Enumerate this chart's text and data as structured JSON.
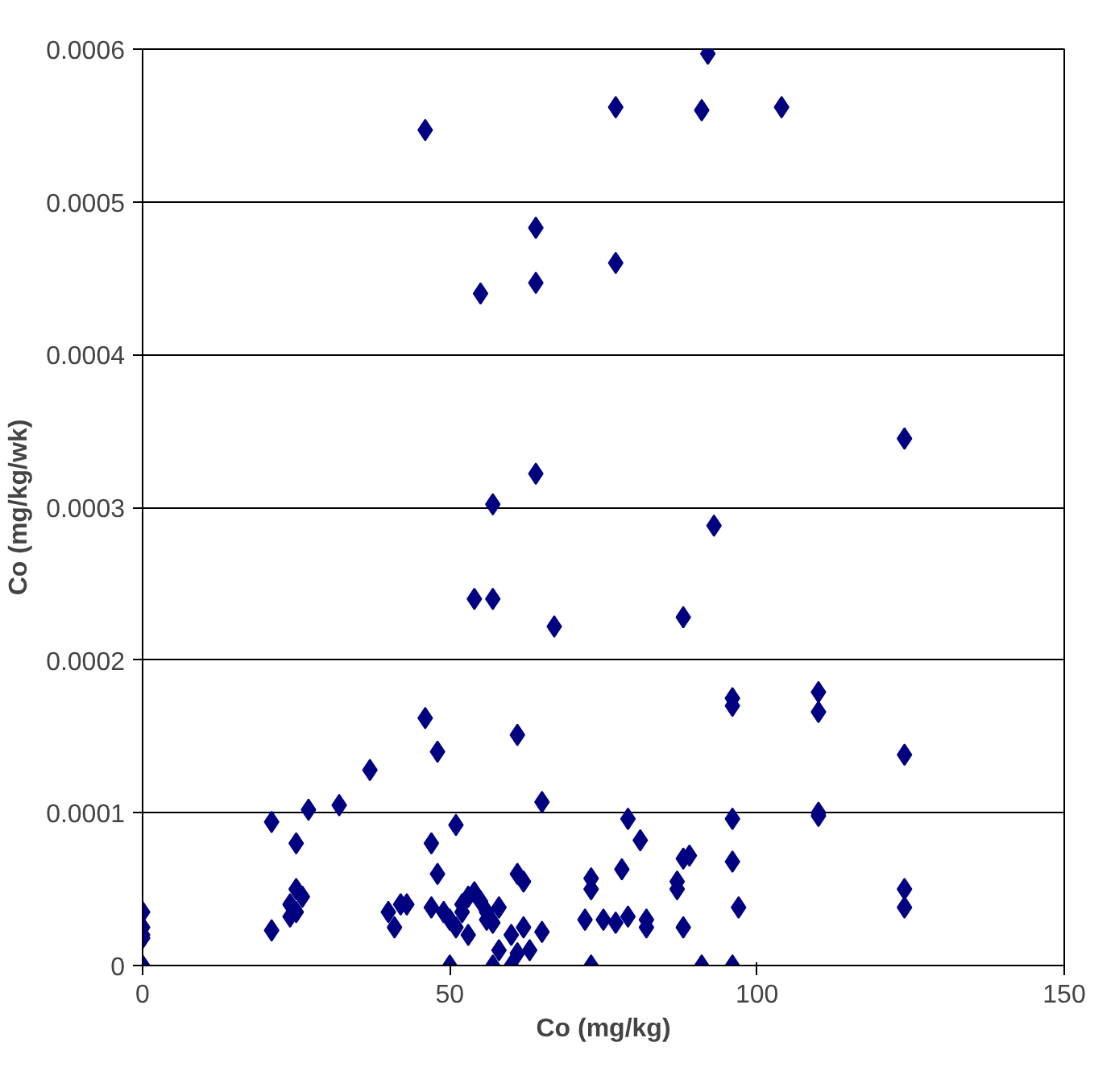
{
  "chart_data": {
    "type": "scatter",
    "xlabel": "Co (mg/kg)",
    "ylabel": "Co (mg/kg/wk)",
    "xlim": [
      0,
      150
    ],
    "xticks": [
      0,
      50,
      100,
      150
    ],
    "ylim": [
      0,
      0.0006
    ],
    "yticks": [
      0,
      0.0001,
      0.0002,
      0.0003,
      0.0004,
      0.0005,
      0.0006
    ],
    "grid": "y",
    "marker": "diamond",
    "series": [
      {
        "color": "#000080",
        "x": [
          92,
          46,
          77,
          91,
          104,
          64,
          55,
          64,
          77,
          124,
          64,
          57,
          93,
          54,
          57,
          67,
          88,
          96,
          96,
          110,
          110,
          46,
          48,
          124,
          37,
          61,
          65,
          32,
          27,
          110,
          110,
          21,
          51,
          79,
          96,
          81,
          25,
          47,
          89,
          88,
          96,
          48,
          61,
          62,
          78,
          73,
          73,
          87,
          87,
          124,
          124,
          25,
          26,
          24,
          25,
          21,
          24,
          40,
          42,
          41,
          43,
          47,
          49,
          50,
          52,
          53,
          55,
          51,
          53,
          56,
          58,
          57,
          60,
          62,
          58,
          61,
          63,
          65,
          54,
          52,
          56,
          72,
          75,
          77,
          79,
          82,
          82,
          88,
          97,
          0,
          0,
          0,
          0,
          0,
          50,
          57,
          60,
          73,
          91,
          96
        ],
        "values": [
          0.000597,
          0.000547,
          0.000562,
          0.00056,
          0.000562,
          0.000483,
          0.00044,
          0.000447,
          0.00046,
          0.000345,
          0.000322,
          0.000302,
          0.000288,
          0.00024,
          0.00024,
          0.000222,
          0.000228,
          0.000175,
          0.00017,
          0.000179,
          0.000166,
          0.000162,
          0.00014,
          0.000138,
          0.000128,
          0.000151,
          0.000107,
          0.000105,
          0.000102,
          0.0001,
          9.8e-05,
          9.4e-05,
          9.2e-05,
          9.6e-05,
          9.6e-05,
          8.2e-05,
          8e-05,
          8e-05,
          7.2e-05,
          7e-05,
          6.8e-05,
          6e-05,
          6e-05,
          5.5e-05,
          6.3e-05,
          5.7e-05,
          5e-05,
          5.5e-05,
          5e-05,
          5e-05,
          3.8e-05,
          5e-05,
          4.5e-05,
          4e-05,
          3.5e-05,
          2.3e-05,
          3.2e-05,
          3.5e-05,
          4e-05,
          2.5e-05,
          4e-05,
          3.8e-05,
          3.5e-05,
          3e-05,
          4e-05,
          4.5e-05,
          4.2e-05,
          2.5e-05,
          2e-05,
          3.5e-05,
          3.8e-05,
          2.8e-05,
          2e-05,
          2.5e-05,
          1e-05,
          8e-06,
          1e-05,
          2.2e-05,
          4.8e-05,
          3.5e-05,
          3e-05,
          3e-05,
          3e-05,
          2.8e-05,
          3.2e-05,
          3e-05,
          2.5e-05,
          2.5e-05,
          3.8e-05,
          3.5e-05,
          2.5e-05,
          2e-05,
          1.8e-05,
          0,
          0,
          0,
          0,
          0,
          0,
          0
        ]
      }
    ]
  }
}
